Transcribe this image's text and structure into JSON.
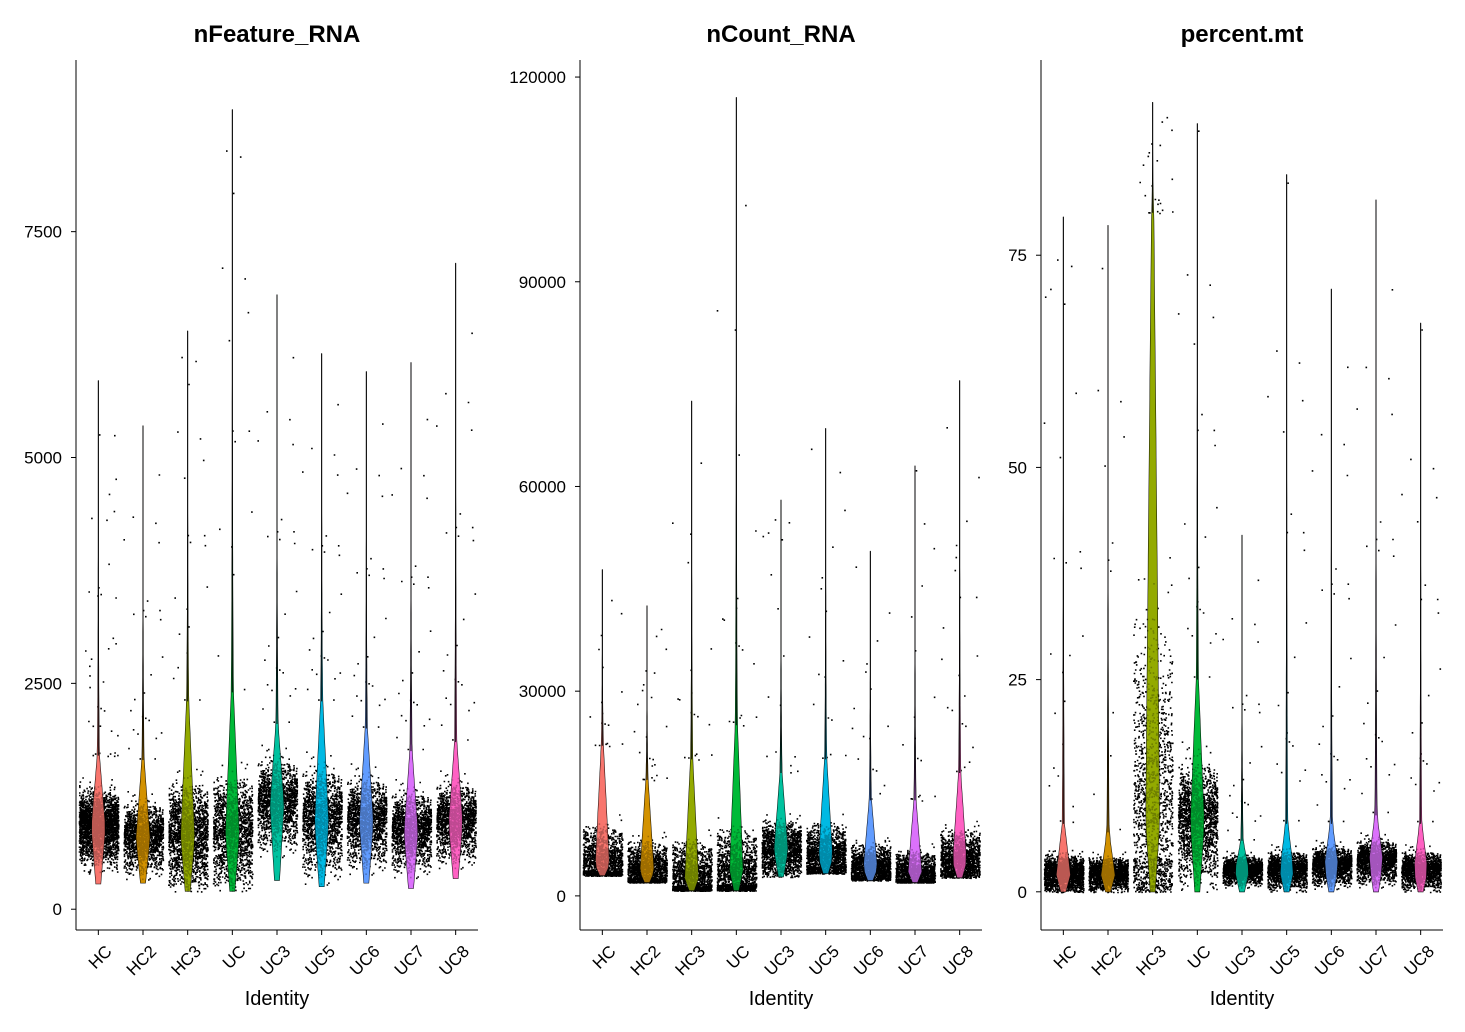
{
  "chart_data": [
    {
      "type": "violin",
      "title": "nFeature_RNA",
      "xlabel": "Identity",
      "ylabel": "",
      "ylim": [
        -230,
        9400
      ],
      "yticks": [
        0,
        2500,
        5000,
        7500
      ],
      "ytick_labels": [
        "0",
        "2500",
        "5000",
        "7500"
      ],
      "categories": [
        "HC",
        "HC2",
        "HC3",
        "UC",
        "UC3",
        "UC5",
        "UC6",
        "UC7",
        "UC8"
      ],
      "colors": [
        "#F8766D",
        "#D39200",
        "#93AA00",
        "#00BA38",
        "#00C19F",
        "#00B9E3",
        "#619CFF",
        "#DB72FB",
        "#FF61C3"
      ],
      "min": [
        280,
        290,
        200,
        200,
        320,
        250,
        290,
        230,
        340
      ],
      "median": [
        900,
        780,
        780,
        820,
        1150,
        950,
        950,
        850,
        950
      ],
      "dense_top": [
        1700,
        1650,
        2300,
        2400,
        2050,
        2300,
        2000,
        1750,
        1850
      ],
      "max": [
        5850,
        5350,
        6400,
        8850,
        6800,
        6150,
        5950,
        6050,
        7150
      ]
    },
    {
      "type": "violin",
      "title": "nCount_RNA",
      "xlabel": "Identity",
      "ylabel": "",
      "ylim": [
        -5000,
        122500
      ],
      "yticks": [
        0,
        30000,
        60000,
        90000,
        120000
      ],
      "ytick_labels": [
        "0",
        "30000",
        "60000",
        "90000",
        "120000"
      ],
      "categories": [
        "HC",
        "HC2",
        "HC3",
        "UC",
        "UC3",
        "UC5",
        "UC6",
        "UC7",
        "UC8"
      ],
      "colors": [
        "#F8766D",
        "#D39200",
        "#93AA00",
        "#00BA38",
        "#00C19F",
        "#00B9E3",
        "#619CFF",
        "#DB72FB",
        "#FF61C3"
      ],
      "min": [
        3000,
        2000,
        800,
        800,
        2800,
        3300,
        2300,
        2000,
        2700
      ],
      "median": [
        4500,
        3500,
        2200,
        2500,
        6500,
        5500,
        4000,
        3000,
        5000
      ],
      "dense_top": [
        22000,
        17000,
        20000,
        25000,
        18000,
        20000,
        14000,
        14000,
        18000
      ],
      "max": [
        47800,
        42500,
        72500,
        117000,
        58000,
        68500,
        50500,
        63000,
        75500
      ]
    },
    {
      "type": "violin",
      "title": "percent.mt",
      "xlabel": "Identity",
      "ylabel": "",
      "ylim": [
        -4.5,
        98
      ],
      "yticks": [
        0,
        25,
        50,
        75
      ],
      "ytick_labels": [
        "0",
        "25",
        "50",
        "75"
      ],
      "categories": [
        "HC",
        "HC2",
        "HC3",
        "UC",
        "UC3",
        "UC5",
        "UC6",
        "UC7",
        "UC8"
      ],
      "colors": [
        "#F8766D",
        "#D39200",
        "#93AA00",
        "#00BA38",
        "#00C19F",
        "#00B9E3",
        "#619CFF",
        "#DB72FB",
        "#FF61C3"
      ],
      "min": [
        0,
        0,
        0,
        0,
        0,
        0,
        0,
        0,
        0
      ],
      "median": [
        2,
        2,
        8,
        8,
        2.5,
        2.5,
        3,
        3.5,
        2.5
      ],
      "dense_top": [
        8,
        7,
        80,
        25,
        6,
        8,
        8,
        9,
        8
      ],
      "max": [
        79.5,
        78.5,
        93,
        90.5,
        42,
        84.5,
        71,
        81.5,
        67
      ]
    }
  ]
}
